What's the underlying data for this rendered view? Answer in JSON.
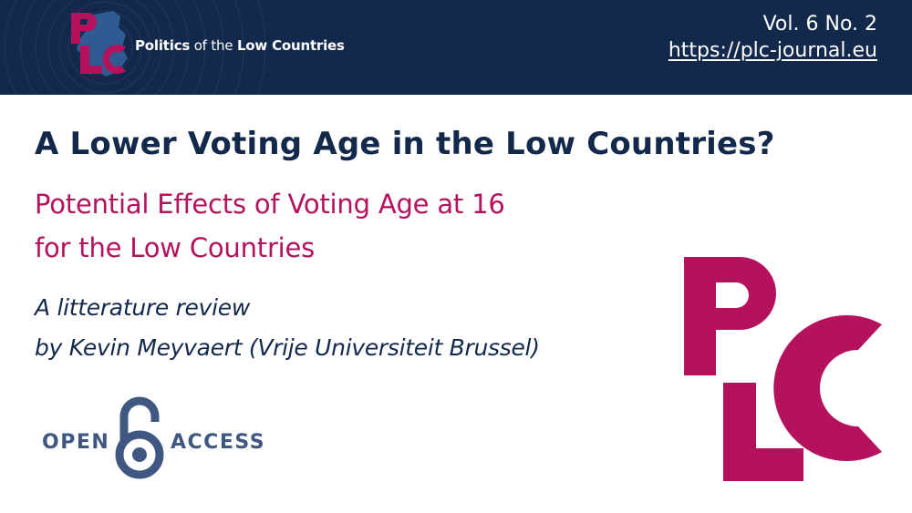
{
  "header": {
    "brand": {
      "name_bold_1": "Politics",
      "name_thin": "of the",
      "name_bold_2": "Low Countries",
      "logo_icon": "plc-logo-icon"
    },
    "issue": "Vol. 6 No. 2",
    "url": "https://plc-journal.eu"
  },
  "article": {
    "title": "A Lower Voting Age in the Low Countries?",
    "subtitle_line1": "Potential Effects of Voting Age at 16",
    "subtitle_line2": "for the Low Countries",
    "type": "A litterature review",
    "byline": "by Kevin Meyvaert (Vrije Universiteit Brussel)"
  },
  "open_access": {
    "open": "OPEN",
    "access": "ACCESS",
    "icon": "open-access-lock-icon"
  },
  "logo": {
    "icon": "plc-logo-large"
  },
  "colors": {
    "navy": "#13294b",
    "magenta": "#b5125e",
    "oa_blue": "#3f5781",
    "white": "#ffffff"
  }
}
